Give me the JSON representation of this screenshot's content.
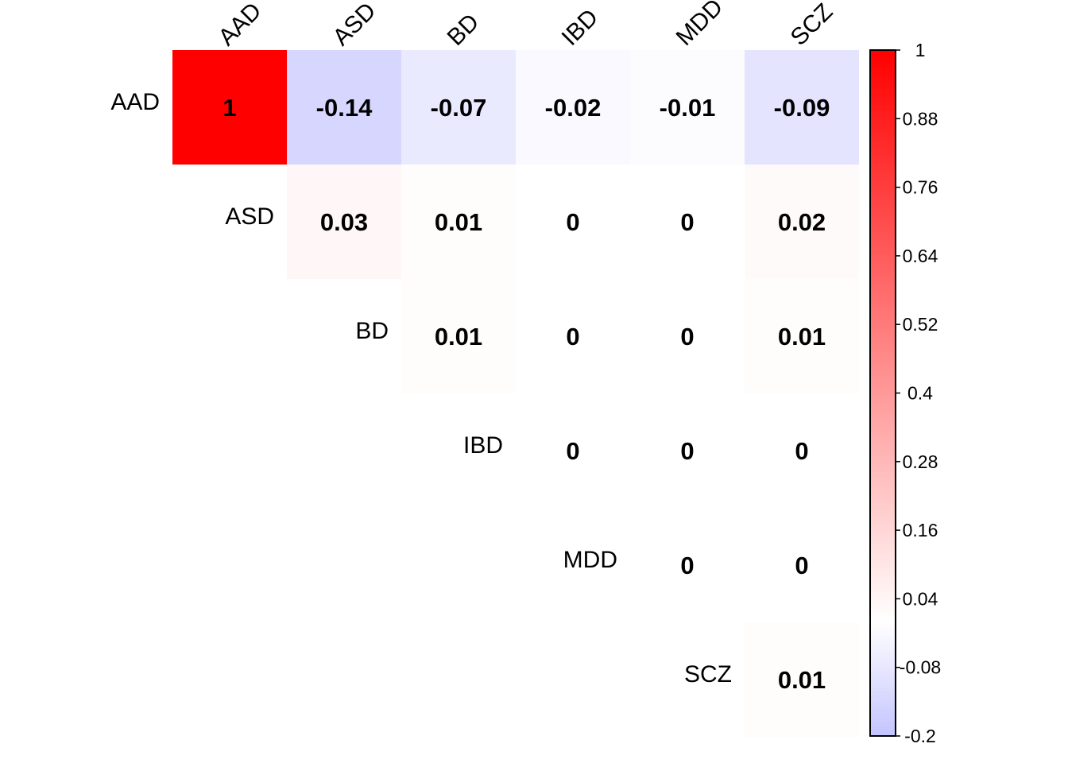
{
  "chart_data": {
    "type": "heatmap",
    "variables": [
      "AAD",
      "ASD",
      "BD",
      "IBD",
      "MDD",
      "SCZ"
    ],
    "matrix": [
      [
        1,
        -0.14,
        -0.07,
        -0.02,
        -0.01,
        -0.09
      ],
      [
        null,
        0.03,
        0.01,
        0,
        0,
        0.02
      ],
      [
        null,
        null,
        0.01,
        0,
        0,
        0.01
      ],
      [
        null,
        null,
        null,
        0,
        0,
        0
      ],
      [
        null,
        null,
        null,
        null,
        0,
        0
      ],
      [
        null,
        null,
        null,
        null,
        null,
        0.01
      ]
    ],
    "shape": "upper-triangle",
    "colorbar": {
      "min": -0.2,
      "max": 1,
      "ticks": [
        "1",
        "0.88",
        "0.76",
        "0.64",
        "0.52",
        "0.4",
        "0.28",
        "0.16",
        "0.04",
        "-0.08",
        "-0.2"
      ],
      "tick_values": [
        1,
        0.88,
        0.76,
        0.64,
        0.52,
        0.4,
        0.28,
        0.16,
        0.04,
        -0.08,
        -0.2
      ],
      "colors": {
        "low": "#c4c4ff",
        "mid": "#ffffff",
        "high": "#ff0000"
      },
      "position": "right"
    }
  }
}
